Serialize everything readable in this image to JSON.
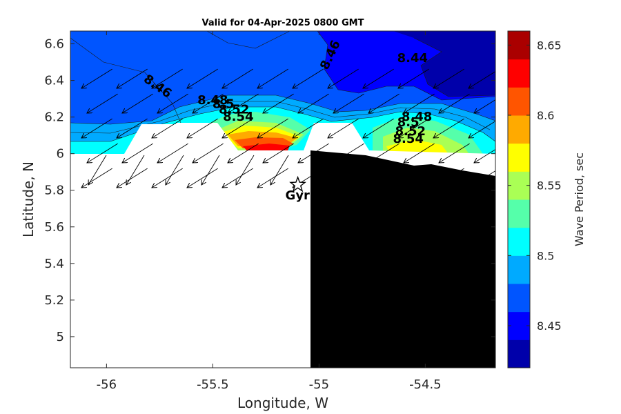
{
  "chart_data": {
    "type": "contour",
    "title": "Valid for 04-Apr-2025 0800 GMT",
    "xlabel": "Longitude, W",
    "ylabel": "Latitude, N",
    "xlim": [
      -56.17,
      -54.17
    ],
    "ylim": [
      4.83,
      6.67
    ],
    "x_ticks": [
      -56,
      -55.5,
      -55,
      -54.5
    ],
    "x_tick_labels": [
      "-56",
      "-55.5",
      "-55",
      "-54.5"
    ],
    "y_ticks": [
      5,
      5.2,
      5.4,
      5.6,
      5.8,
      6,
      6.2,
      6.4,
      6.6
    ],
    "y_tick_labels": [
      "5",
      "5.2",
      "5.4",
      "5.6",
      "5.8",
      "6",
      "6.2",
      "6.4",
      "6.6"
    ],
    "colorbar": {
      "label": "Wave Period, sec",
      "range": [
        8.42,
        8.66
      ],
      "ticks": [
        8.45,
        8.5,
        8.55,
        8.6,
        8.65
      ],
      "tick_labels": [
        "8.45",
        "8.5",
        "8.55",
        "8.6",
        "8.65"
      ],
      "colors": [
        "#0000aa",
        "#0000ff",
        "#0055ff",
        "#00aaff",
        "#00ffff",
        "#55ffaa",
        "#aaff55",
        "#ffff00",
        "#ffaa00",
        "#ff5500",
        "#ff0000",
        "#aa0000"
      ]
    },
    "contour_labels": [
      {
        "text": "8.46",
        "x": -55.77,
        "y": 6.35
      },
      {
        "text": "8.46",
        "x": -54.93,
        "y": 6.53
      },
      {
        "text": "8.44",
        "x": -54.56,
        "y": 6.5
      },
      {
        "text": "8.48",
        "x": -55.5,
        "y": 6.27
      },
      {
        "text": "8.5",
        "x": -55.45,
        "y": 6.25
      },
      {
        "text": "8.52",
        "x": -55.4,
        "y": 6.22
      },
      {
        "text": "8.54",
        "x": -55.38,
        "y": 6.18
      },
      {
        "text": "8.48",
        "x": -54.54,
        "y": 6.18
      },
      {
        "text": "8.5",
        "x": -54.58,
        "y": 6.15
      },
      {
        "text": "8.52",
        "x": -54.57,
        "y": 6.1
      },
      {
        "text": "8.54",
        "x": -54.58,
        "y": 6.06
      }
    ],
    "station": {
      "label": "Gyr",
      "lon": -55.1,
      "lat": 5.83
    },
    "land_color": "#000000",
    "grid": false
  }
}
